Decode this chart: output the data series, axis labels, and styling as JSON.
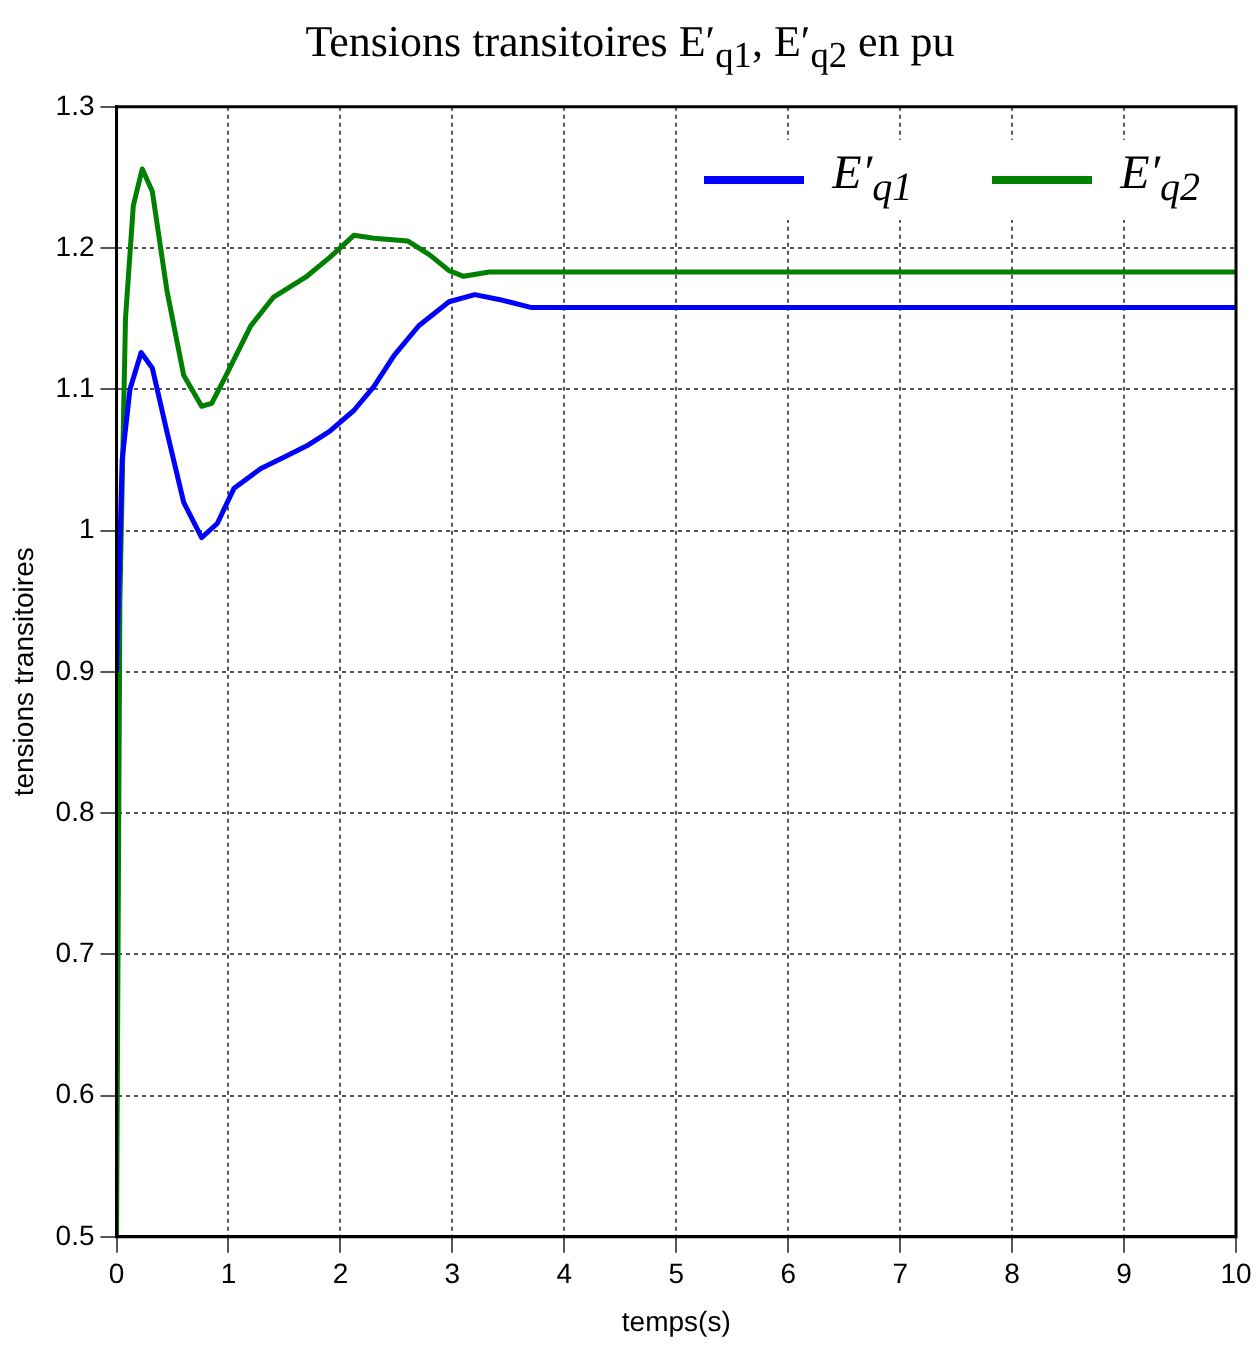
{
  "chart_data": {
    "type": "line",
    "title": "Tensions transitoires E′$_{q1}$, E′$_{q2}$ en pu",
    "xlabel": "temps(s)",
    "ylabel": "tensions transitoires",
    "xlim": [
      0,
      10
    ],
    "ylim": [
      0.5,
      1.3
    ],
    "xticks": [
      0,
      1,
      2,
      3,
      4,
      5,
      6,
      7,
      8,
      9,
      10
    ],
    "yticks": [
      0.5,
      0.6,
      0.7,
      0.8,
      0.9,
      1,
      1.1,
      1.2,
      1.3
    ],
    "grid": true,
    "legend": "top right",
    "marker": "none",
    "line_style": "solid",
    "series": [
      {
        "name": "E′$_{q1}$",
        "color": "#0000ff",
        "x": [
          0,
          0.05,
          0.12,
          0.22,
          0.32,
          0.45,
          0.6,
          0.76,
          0.9,
          1.05,
          1.29,
          1.5,
          1.7,
          1.9,
          2.12,
          2.3,
          2.48,
          2.7,
          2.97,
          3.2,
          3.45,
          3.7,
          5,
          7,
          10
        ],
        "values": [
          0.9,
          1.05,
          1.1,
          1.126,
          1.115,
          1.07,
          1.02,
          0.995,
          1.005,
          1.03,
          1.044,
          1.052,
          1.06,
          1.07,
          1.085,
          1.102,
          1.124,
          1.145,
          1.162,
          1.167,
          1.163,
          1.158,
          1.158,
          1.158,
          1.158
        ]
      },
      {
        "name": "E′$_{q2}$",
        "color": "#008000",
        "x": [
          0,
          0.03,
          0.08,
          0.15,
          0.23,
          0.32,
          0.45,
          0.6,
          0.76,
          0.85,
          0.98,
          1.2,
          1.4,
          1.7,
          1.9,
          2.12,
          2.3,
          2.6,
          2.8,
          2.97,
          3.1,
          3.33,
          5,
          7,
          10
        ],
        "values": [
          0.5,
          0.95,
          1.15,
          1.23,
          1.256,
          1.24,
          1.17,
          1.11,
          1.088,
          1.09,
          1.11,
          1.145,
          1.165,
          1.18,
          1.193,
          1.209,
          1.207,
          1.205,
          1.195,
          1.184,
          1.18,
          1.183,
          1.183,
          1.183,
          1.183
        ]
      }
    ]
  }
}
